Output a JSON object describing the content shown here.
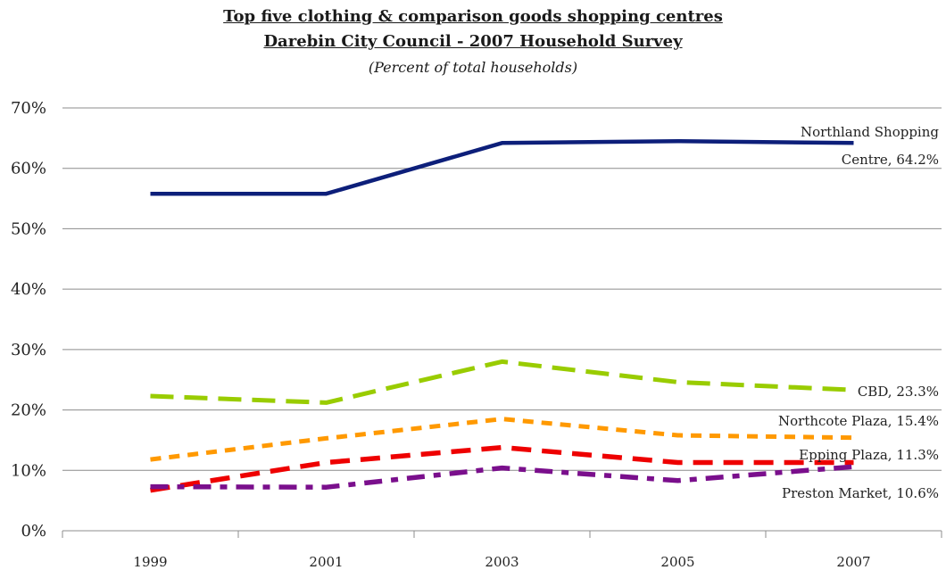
{
  "chart_data": {
    "type": "line",
    "title": "Top five clothing & comparison goods shopping centres",
    "subtitle": "Darebin City Council - 2007 Household Survey",
    "note": "(Percent of total households)",
    "categories": [
      "1999",
      "2001",
      "2003",
      "2005",
      "2007"
    ],
    "ylim": [
      0,
      70
    ],
    "yticks": [
      0,
      10,
      20,
      30,
      40,
      50,
      60,
      70
    ],
    "ytick_labels": [
      "0%",
      "10%",
      "20%",
      "30%",
      "40%",
      "50%",
      "60%",
      "70%"
    ],
    "grid": true,
    "legend": "none",
    "series": [
      {
        "name": "Northland Shopping Centre",
        "label_lines": [
          "Northland Shopping",
          "Centre, 64.2%"
        ],
        "values": [
          55.8,
          55.8,
          64.2,
          64.5,
          64.2
        ],
        "color": "#0d1f7a",
        "dash": "solid"
      },
      {
        "name": "CBD",
        "label_lines": [
          "CBD, 23.3%"
        ],
        "values": [
          22.3,
          21.2,
          28.0,
          24.6,
          23.3
        ],
        "color": "#99cc00",
        "dash": "long"
      },
      {
        "name": "Northcote Plaza",
        "label_lines": [
          "Northcote Plaza, 15.4%"
        ],
        "values": [
          11.8,
          15.3,
          18.5,
          15.8,
          15.4
        ],
        "color": "#ff9900",
        "dash": "short"
      },
      {
        "name": "Epping Plaza",
        "label_lines": [
          "Epping Plaza, 11.3%"
        ],
        "values": [
          6.7,
          11.3,
          13.8,
          11.3,
          11.3
        ],
        "color": "#ee0000",
        "dash": "longdash"
      },
      {
        "name": "Preston Market",
        "label_lines": [
          "Preston Market, 10.6%"
        ],
        "values": [
          7.3,
          7.2,
          10.4,
          8.3,
          10.6
        ],
        "color": "#7a0f8c",
        "dash": "dashdot"
      }
    ]
  }
}
